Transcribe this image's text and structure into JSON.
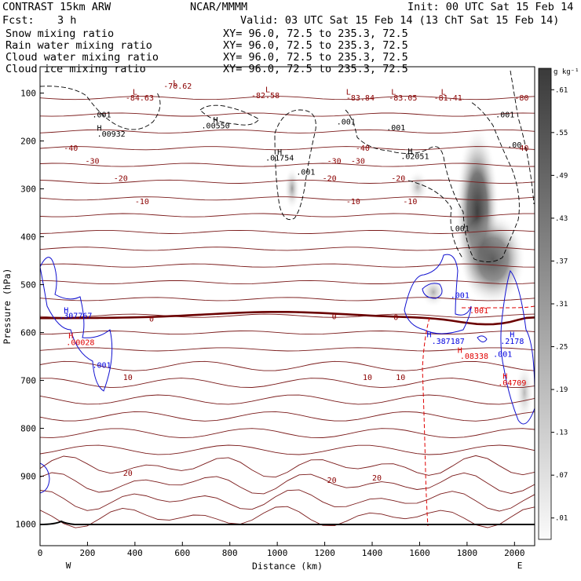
{
  "header": {
    "model": "CONTRAST 15km ARW",
    "org": "NCAR/MMMM",
    "init": "Init: 00 UTC Sat 15 Feb 14",
    "fcst_label": "Fcst:",
    "fcst_value": "3 h",
    "valid": "Valid: 03 UTC Sat 15 Feb 14 (13 ChT Sat 15 Feb 14)"
  },
  "legend": [
    {
      "name": "Snow mixing ratio",
      "xy": "XY=  96.0, 72.5 to 235.3, 72.5",
      "color": "#000000"
    },
    {
      "name": "Rain water mixing ratio",
      "xy": "XY=  96.0, 72.5 to 235.3, 72.5",
      "color": "#e00000"
    },
    {
      "name": "Cloud water mixing ratio",
      "xy": "XY=  96.0, 72.5 to 235.3, 72.5",
      "color": "#0000e0"
    },
    {
      "name": "Cloud ice mixing ratio",
      "xy": "XY=  96.0, 72.5 to 235.3, 72.5",
      "color": "#000000"
    }
  ],
  "chart_data": {
    "type": "cross-section",
    "xlabel": "Distance (km)",
    "ylabel": "Pressure (hPa)",
    "x_ticks": [
      0,
      200,
      400,
      600,
      800,
      1000,
      1200,
      1400,
      1600,
      1800,
      2000
    ],
    "xlim": [
      0,
      2085
    ],
    "y_ticks": [
      100,
      200,
      300,
      400,
      500,
      600,
      700,
      800,
      900,
      1000
    ],
    "ylim": [
      45,
      1045
    ],
    "x_end_labels": {
      "left": "W",
      "right": "E"
    },
    "colorbar": {
      "unit": "g kg⁻¹",
      "levels": [
        ".01",
        ".07",
        ".13",
        ".19",
        ".25",
        ".31",
        ".37",
        ".43",
        ".49",
        ".55",
        ".61"
      ]
    },
    "temperature_isotherms": [
      {
        "label": "-80",
        "p": 110
      },
      {
        "label": "-40",
        "p": 215
      },
      {
        "label": "-30",
        "p": 240
      },
      {
        "label": "-20",
        "p": 280
      },
      {
        "label": "-10",
        "p": 325
      },
      {
        "label": "0",
        "p": 570
      },
      {
        "label": "10",
        "p": 690
      },
      {
        "label": "20",
        "p": 905
      }
    ],
    "contour_labels": [
      {
        "text": "-70.62",
        "x": 580,
        "p": 85,
        "color": "#8b0000"
      },
      {
        "text": "-84.63",
        "x": 420,
        "p": 110,
        "color": "#8b0000"
      },
      {
        "text": "-82.58",
        "x": 950,
        "p": 105,
        "color": "#8b0000"
      },
      {
        "text": "-83.84",
        "x": 1350,
        "p": 110,
        "color": "#8b0000"
      },
      {
        "text": "-83.05",
        "x": 1530,
        "p": 110,
        "color": "#8b0000"
      },
      {
        "text": "-81.41",
        "x": 1720,
        "p": 110,
        "color": "#8b0000"
      },
      {
        "text": "-80",
        "x": 2030,
        "p": 110,
        "color": "#8b0000"
      },
      {
        "text": "-40",
        "x": 130,
        "p": 215,
        "color": "#8b0000"
      },
      {
        "text": "-40",
        "x": 1360,
        "p": 215,
        "color": "#8b0000"
      },
      {
        "text": "-40",
        "x": 2030,
        "p": 215,
        "color": "#8b0000"
      },
      {
        "text": "-30",
        "x": 220,
        "p": 242,
        "color": "#8b0000"
      },
      {
        "text": "-30",
        "x": 1240,
        "p": 242,
        "color": "#8b0000"
      },
      {
        "text": "-30",
        "x": 1340,
        "p": 242,
        "color": "#8b0000"
      },
      {
        "text": "-20",
        "x": 340,
        "p": 278,
        "color": "#8b0000"
      },
      {
        "text": "-20",
        "x": 1220,
        "p": 278,
        "color": "#8b0000"
      },
      {
        "text": "-20",
        "x": 1510,
        "p": 278,
        "color": "#8b0000"
      },
      {
        "text": "-10",
        "x": 430,
        "p": 326,
        "color": "#8b0000"
      },
      {
        "text": "-10",
        "x": 1320,
        "p": 326,
        "color": "#8b0000"
      },
      {
        "text": "-10",
        "x": 1560,
        "p": 326,
        "color": "#8b0000"
      },
      {
        "text": "0",
        "x": 470,
        "p": 571,
        "color": "#8b0000"
      },
      {
        "text": "0",
        "x": 1240,
        "p": 566,
        "color": "#8b0000"
      },
      {
        "text": "0",
        "x": 1500,
        "p": 568,
        "color": "#8b0000"
      },
      {
        "text": "10",
        "x": 370,
        "p": 693,
        "color": "#8b0000"
      },
      {
        "text": "10",
        "x": 1380,
        "p": 693,
        "color": "#8b0000"
      },
      {
        "text": "10",
        "x": 1520,
        "p": 693,
        "color": "#8b0000"
      },
      {
        "text": "20",
        "x": 370,
        "p": 893,
        "color": "#8b0000"
      },
      {
        "text": "20",
        "x": 1230,
        "p": 908,
        "color": "#8b0000"
      },
      {
        "text": "20",
        "x": 1420,
        "p": 903,
        "color": "#8b0000"
      },
      {
        "text": ".001",
        "x": 260,
        "p": 145,
        "color": "#000000"
      },
      {
        "text": ".00932",
        "x": 300,
        "p": 185,
        "color": "#000000"
      },
      {
        "text": ".00550",
        "x": 740,
        "p": 168,
        "color": "#000000"
      },
      {
        "text": ".01754",
        "x": 1010,
        "p": 235,
        "color": "#000000"
      },
      {
        "text": ".001",
        "x": 1120,
        "p": 265,
        "color": "#000000"
      },
      {
        "text": ".001",
        "x": 1290,
        "p": 160,
        "color": "#000000"
      },
      {
        "text": ".001",
        "x": 1500,
        "p": 172,
        "color": "#000000"
      },
      {
        "text": ".02051",
        "x": 1580,
        "p": 232,
        "color": "#000000"
      },
      {
        "text": ".001",
        "x": 1960,
        "p": 145,
        "color": "#000000"
      },
      {
        "text": ".00",
        "x": 2000,
        "p": 208,
        "color": "#000000"
      },
      {
        "text": ".001",
        "x": 1770,
        "p": 383,
        "color": "#000000"
      },
      {
        "text": ".307767",
        "x": 150,
        "p": 565,
        "color": "#0000e0"
      },
      {
        "text": ".00028",
        "x": 170,
        "p": 620,
        "color": "#e00000"
      },
      {
        "text": ".001",
        "x": 260,
        "p": 668,
        "color": "#0000e0"
      },
      {
        "text": ".001",
        "x": 1770,
        "p": 522,
        "color": "#0000e0"
      },
      {
        "text": ".001",
        "x": 1850,
        "p": 554,
        "color": "#e00000"
      },
      {
        "text": ".387187",
        "x": 1720,
        "p": 618,
        "color": "#0000e0"
      },
      {
        "text": ".08338",
        "x": 1830,
        "p": 649,
        "color": "#e00000"
      },
      {
        "text": ".2178",
        "x": 1990,
        "p": 618,
        "color": "#0000e0"
      },
      {
        "text": ".001",
        "x": 1950,
        "p": 645,
        "color": "#0000e0"
      },
      {
        "text": ".04709",
        "x": 1990,
        "p": 705,
        "color": "#e00000"
      }
    ],
    "maxima_markers": [
      {
        "text": "L",
        "x": 570,
        "p": 78,
        "color": "#8b0000"
      },
      {
        "text": "L",
        "x": 400,
        "p": 97,
        "color": "#8b0000"
      },
      {
        "text": "L",
        "x": 960,
        "p": 92,
        "color": "#8b0000"
      },
      {
        "text": "L",
        "x": 1300,
        "p": 97,
        "color": "#8b0000"
      },
      {
        "text": "L",
        "x": 1490,
        "p": 97,
        "color": "#8b0000"
      },
      {
        "text": "L",
        "x": 1700,
        "p": 97,
        "color": "#8b0000"
      },
      {
        "text": "H",
        "x": 250,
        "p": 172,
        "color": "#000000"
      },
      {
        "text": "H",
        "x": 740,
        "p": 155,
        "color": "#000000"
      },
      {
        "text": "H",
        "x": 1010,
        "p": 222,
        "color": "#000000"
      },
      {
        "text": "H",
        "x": 1560,
        "p": 220,
        "color": "#000000"
      },
      {
        "text": "H",
        "x": 110,
        "p": 552,
        "color": "#0000e0"
      },
      {
        "text": "H",
        "x": 130,
        "p": 606,
        "color": "#e00000"
      },
      {
        "text": "H",
        "x": 1640,
        "p": 603,
        "color": "#0000e0"
      },
      {
        "text": "H",
        "x": 1770,
        "p": 636,
        "color": "#e00000"
      },
      {
        "text": "H",
        "x": 1990,
        "p": 603,
        "color": "#0000e0"
      },
      {
        "text": "H",
        "x": 1960,
        "p": 690,
        "color": "#e00000"
      }
    ]
  }
}
